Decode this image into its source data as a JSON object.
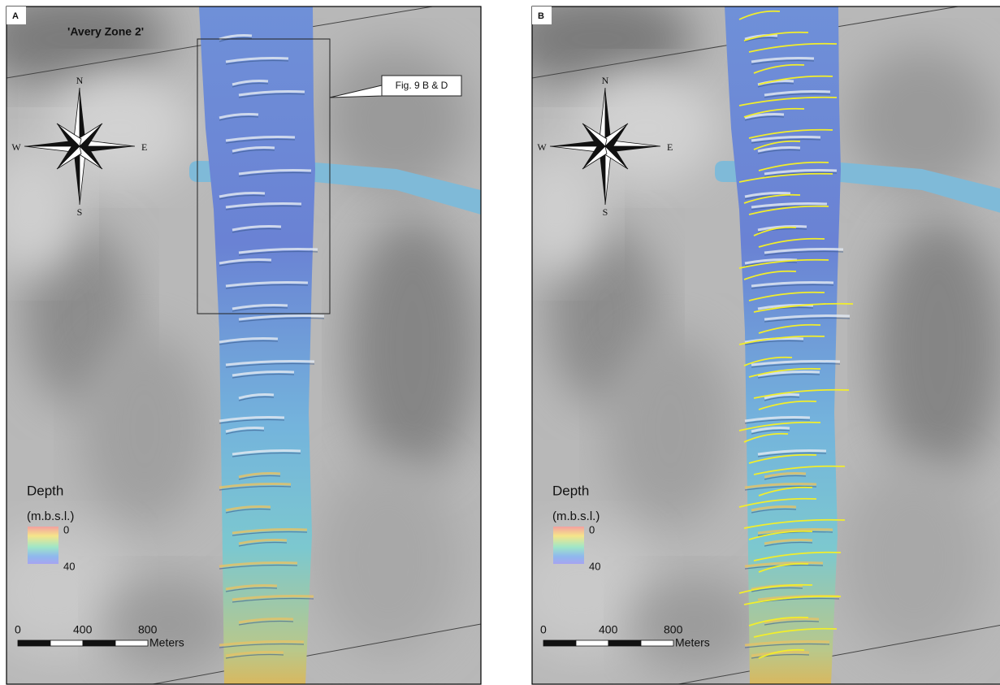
{
  "panels": [
    {
      "label": "A",
      "title": "'Avery Zone 2'",
      "callout": "Fig. 9 B & D",
      "compass": {
        "n": "N",
        "e": "E",
        "s": "S",
        "w": "W"
      },
      "legend": {
        "title": "Depth",
        "unit": "(m.b.s.l.)",
        "min": 0,
        "max": 40
      },
      "scale": {
        "ticks": [
          0,
          400,
          800
        ],
        "unit": "Meters"
      }
    },
    {
      "label": "B",
      "compass": {
        "n": "N",
        "e": "E",
        "s": "S",
        "w": "W"
      },
      "legend": {
        "title": "Depth",
        "unit": "(m.b.s.l.)",
        "min": 0,
        "max": 40
      },
      "scale": {
        "ticks": [
          0,
          400,
          800
        ],
        "unit": "Meters"
      }
    }
  ]
}
